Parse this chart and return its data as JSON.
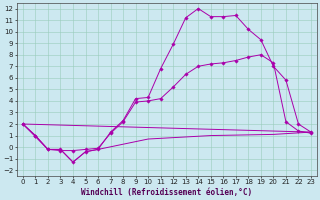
{
  "xlabel": "Windchill (Refroidissement éolien,°C)",
  "background_color": "#cce8f0",
  "line_color": "#aa00aa",
  "grid_color": "#99ccbb",
  "xlim": [
    -0.5,
    23.5
  ],
  "ylim": [
    -2.5,
    12.5
  ],
  "xticks": [
    0,
    1,
    2,
    3,
    4,
    5,
    6,
    7,
    8,
    9,
    10,
    11,
    12,
    13,
    14,
    15,
    16,
    17,
    18,
    19,
    20,
    21,
    22,
    23
  ],
  "yticks": [
    -2,
    -1,
    0,
    1,
    2,
    3,
    4,
    5,
    6,
    7,
    8,
    9,
    10,
    11,
    12
  ],
  "line1_x": [
    0,
    1,
    2,
    3,
    4,
    5,
    6,
    7,
    8,
    9,
    10,
    11,
    12,
    13,
    14,
    15,
    16,
    17,
    18,
    19,
    20,
    21,
    22,
    23
  ],
  "line1_y": [
    2.0,
    1.0,
    -0.2,
    -0.2,
    -1.3,
    -0.4,
    -0.2,
    1.3,
    2.3,
    4.2,
    4.3,
    6.8,
    8.9,
    11.2,
    12.0,
    11.3,
    11.3,
    11.4,
    10.2,
    9.3,
    7.0,
    5.8,
    2.0,
    1.3
  ],
  "line2_x": [
    0,
    1,
    2,
    3,
    4,
    5,
    6,
    7,
    8,
    9,
    10,
    11,
    12,
    13,
    14,
    15,
    16,
    17,
    18,
    19,
    20,
    21,
    22,
    23
  ],
  "line2_y": [
    2.0,
    1.0,
    -0.2,
    -0.3,
    -0.3,
    -0.2,
    -0.1,
    1.2,
    2.2,
    3.9,
    4.0,
    4.2,
    5.2,
    6.3,
    7.0,
    7.2,
    7.3,
    7.5,
    7.8,
    8.0,
    7.3,
    2.2,
    1.4,
    1.2
  ],
  "line3_x": [
    0,
    23
  ],
  "line3_y": [
    2.0,
    1.3
  ],
  "line4_x": [
    0,
    2,
    3,
    4,
    5,
    6,
    10,
    15,
    20,
    23
  ],
  "line4_y": [
    2.0,
    -0.2,
    -0.2,
    -1.3,
    -0.4,
    -0.2,
    0.7,
    1.0,
    1.1,
    1.3
  ],
  "fontsize_label": 5.5,
  "fontsize_tick": 5
}
